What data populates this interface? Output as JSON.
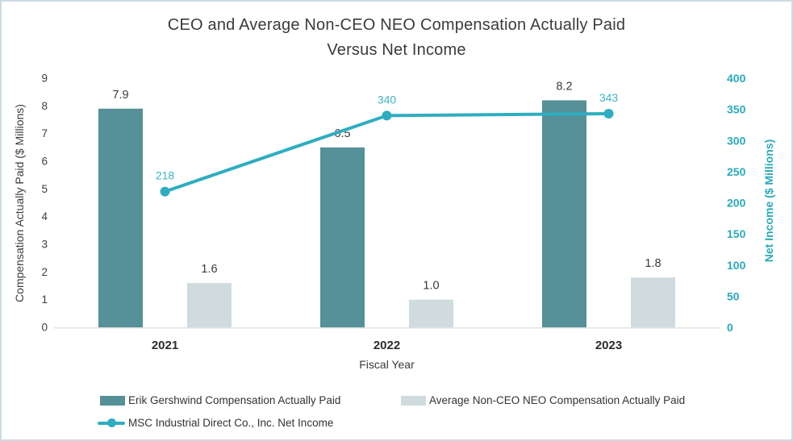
{
  "frame": {
    "border_color": "#ccdce3",
    "background_color": "#ffffff"
  },
  "chart_data": {
    "type": "bar",
    "subtype": "grouped bars with overlaid line (dual axis combo)",
    "title_lines": [
      "CEO and Average Non-CEO NEO Compensation Actually Paid",
      "Versus Net Income"
    ],
    "title": "CEO and Average Non-CEO NEO Compensation Actually Paid Versus Net Income",
    "categories": [
      "2021",
      "2022",
      "2023"
    ],
    "xlabel": "Fiscal Year",
    "grid": false,
    "legend_position": "bottom-left",
    "left_axis": {
      "title": "Compensation Actually Paid ($ Millions)",
      "min": 0,
      "max": 9,
      "tick_step": 1,
      "tick_labels": [
        "0",
        "1",
        "2",
        "3",
        "4",
        "5",
        "6",
        "7",
        "8",
        "9"
      ],
      "text_color": "#3d3d3d"
    },
    "right_axis": {
      "title": "Net Income ($ Millions)",
      "min": 0,
      "max": 400,
      "tick_step": 50,
      "tick_labels": [
        "0",
        "50",
        "100",
        "150",
        "200",
        "250",
        "300",
        "350",
        "400"
      ],
      "text_color": "#2aa9bc"
    },
    "axis_line_color": "#e2e2e2",
    "series": [
      {
        "name": "Erik Gershwind Compensation Actually Paid",
        "kind": "bar",
        "axis": "left",
        "color": "#569098",
        "values": [
          7.9,
          6.5,
          8.2
        ],
        "value_labels": [
          "7.9",
          "6.5",
          "8.2"
        ],
        "label_color": "#3a3a3a"
      },
      {
        "name": "Average Non-CEO NEO Compensation Actually Paid",
        "kind": "bar",
        "axis": "left",
        "color": "#cfdbdf",
        "values": [
          1.6,
          1.0,
          1.8
        ],
        "value_labels": [
          "1.6",
          "1.0",
          "1.8"
        ],
        "label_color": "#3a3a3a"
      },
      {
        "name": "MSC Industrial Direct Co., Inc. Net Income",
        "kind": "line",
        "axis": "right",
        "color": "#2fadc0",
        "values": [
          218,
          340,
          343
        ],
        "value_labels": [
          "218",
          "340",
          "343"
        ],
        "label_color": "#3db5c6"
      }
    ]
  }
}
